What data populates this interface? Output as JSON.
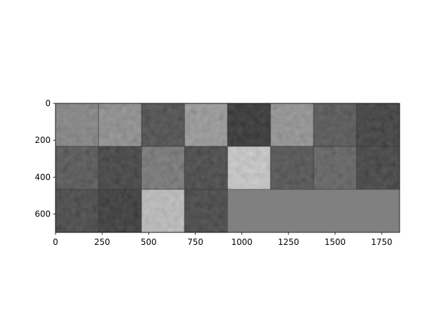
{
  "chart_data": {
    "type": "heatmap",
    "title": "",
    "xlabel": "",
    "ylabel": "",
    "colormap": "gray",
    "xlim": [
      0,
      1846
    ],
    "ylim": [
      0,
      700
    ],
    "y_inverted": true,
    "x_ticks": [
      0,
      250,
      500,
      750,
      1000,
      1250,
      1500,
      1750
    ],
    "y_ticks": [
      0,
      200,
      400,
      600
    ],
    "grid": {
      "rows": 3,
      "cols": 8,
      "tiles": 20,
      "empty_fill": "#808080",
      "mean_brightness": [
        [
          0.45,
          0.5,
          0.18,
          0.55,
          0.05,
          0.52,
          0.22,
          0.1
        ],
        [
          0.22,
          0.12,
          0.38,
          0.15,
          0.78,
          0.2,
          0.28,
          0.12
        ],
        [
          0.15,
          0.08,
          0.72,
          0.14,
          null,
          null,
          null,
          null
        ]
      ]
    }
  }
}
